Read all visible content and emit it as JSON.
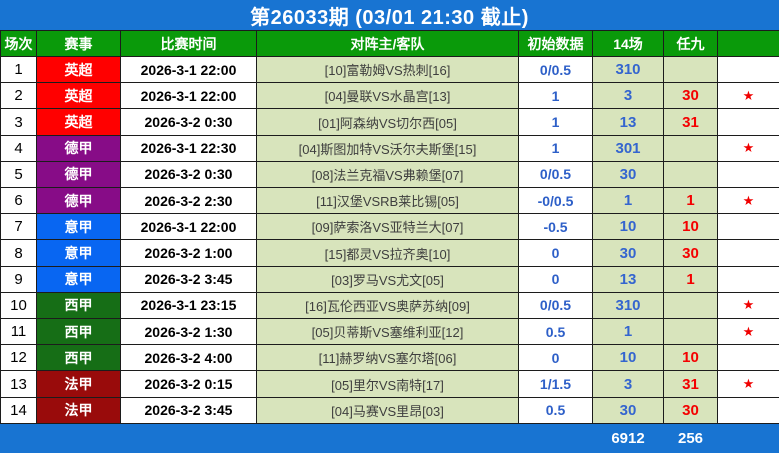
{
  "title": "第26033期 (03/01 21:30 截止)",
  "colors": {
    "title_bar_blue": "#1874d2",
    "header_green": "#0a9a0a",
    "cell_light_green": "#d8e4bc",
    "number_blue": "#3465cf",
    "number_red": "#f40000",
    "star_red": "#f00000",
    "league_yingchao_red": "#ff0000",
    "league_dejia_purple": "#870c87",
    "league_yijia_blue": "#0866f2",
    "league_xijia_green": "#166e16",
    "league_fajia_darkred": "#990b0b"
  },
  "table": {
    "headers": [
      "场次",
      "赛事",
      "比赛时间",
      "对阵主/客队",
      "初始数据",
      "14场",
      "任九",
      ""
    ],
    "rows": [
      {
        "no": "1",
        "league": "英超",
        "league_color": "#ff0000",
        "time": "2026-3-1 22:00",
        "match": "[10]富勒姆VS热刺[16]",
        "initial": "0/0.5",
        "c14": "310",
        "ren9": "",
        "star": ""
      },
      {
        "no": "2",
        "league": "英超",
        "league_color": "#ff0000",
        "time": "2026-3-1 22:00",
        "match": "[04]曼联VS水晶宫[13]",
        "initial": "1",
        "c14": "3",
        "ren9": "30",
        "star": "★"
      },
      {
        "no": "3",
        "league": "英超",
        "league_color": "#ff0000",
        "time": "2026-3-2 0:30",
        "match": "[01]阿森纳VS切尔西[05]",
        "initial": "1",
        "c14": "13",
        "ren9": "31",
        "star": ""
      },
      {
        "no": "4",
        "league": "德甲",
        "league_color": "#870c87",
        "time": "2026-3-1 22:30",
        "match": "[04]斯图加特VS沃尔夫斯堡[15]",
        "initial": "1",
        "c14": "301",
        "ren9": "",
        "star": "★"
      },
      {
        "no": "5",
        "league": "德甲",
        "league_color": "#870c87",
        "time": "2026-3-2 0:30",
        "match": "[08]法兰克福VS弗赖堡[07]",
        "initial": "0/0.5",
        "c14": "30",
        "ren9": "",
        "star": ""
      },
      {
        "no": "6",
        "league": "德甲",
        "league_color": "#870c87",
        "time": "2026-3-2 2:30",
        "match": "[11]汉堡VSRB莱比锡[05]",
        "initial": "-0/0.5",
        "c14": "1",
        "ren9": "1",
        "star": "★"
      },
      {
        "no": "7",
        "league": "意甲",
        "league_color": "#0866f2",
        "time": "2026-3-1 22:00",
        "match": "[09]萨索洛VS亚特兰大[07]",
        "initial": "-0.5",
        "c14": "10",
        "ren9": "10",
        "star": ""
      },
      {
        "no": "8",
        "league": "意甲",
        "league_color": "#0866f2",
        "time": "2026-3-2 1:00",
        "match": "[15]都灵VS拉齐奥[10]",
        "initial": "0",
        "c14": "30",
        "ren9": "30",
        "star": ""
      },
      {
        "no": "9",
        "league": "意甲",
        "league_color": "#0866f2",
        "time": "2026-3-2 3:45",
        "match": "[03]罗马VS尤文[05]",
        "initial": "0",
        "c14": "13",
        "ren9": "1",
        "star": ""
      },
      {
        "no": "10",
        "league": "西甲",
        "league_color": "#166e16",
        "time": "2026-3-1 23:15",
        "match": "[16]瓦伦西亚VS奥萨苏纳[09]",
        "initial": "0/0.5",
        "c14": "310",
        "ren9": "",
        "star": "★"
      },
      {
        "no": "11",
        "league": "西甲",
        "league_color": "#166e16",
        "time": "2026-3-2 1:30",
        "match": "[05]贝蒂斯VS塞维利亚[12]",
        "initial": "0.5",
        "c14": "1",
        "ren9": "",
        "star": "★"
      },
      {
        "no": "12",
        "league": "西甲",
        "league_color": "#166e16",
        "time": "2026-3-2 4:00",
        "match": "[11]赫罗纳VS塞尔塔[06]",
        "initial": "0",
        "c14": "10",
        "ren9": "10",
        "star": ""
      },
      {
        "no": "13",
        "league": "法甲",
        "league_color": "#990b0b",
        "time": "2026-3-2 0:15",
        "match": "[05]里尔VS南特[17]",
        "initial": "1/1.5",
        "c14": "3",
        "ren9": "31",
        "star": "★"
      },
      {
        "no": "14",
        "league": "法甲",
        "league_color": "#990b0b",
        "time": "2026-3-2 3:45",
        "match": "[04]马赛VS里昂[03]",
        "initial": "0.5",
        "c14": "30",
        "ren9": "30",
        "star": ""
      }
    ],
    "footer": {
      "total_14": "6912",
      "total_ren9": "256"
    }
  }
}
